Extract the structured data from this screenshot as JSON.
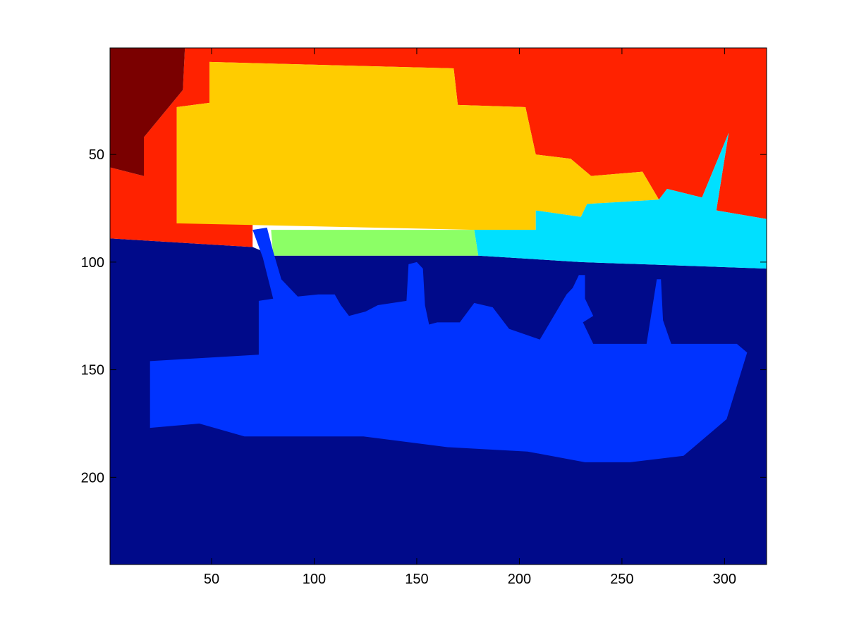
{
  "chart_data": {
    "type": "heatmap",
    "title": "",
    "xlabel": "",
    "ylabel": "",
    "xlim": [
      0.5,
      320.5
    ],
    "ylim": [
      240.5,
      0.5
    ],
    "y_reversed": true,
    "grid": false,
    "colormap": "jet",
    "x_ticks": [
      50,
      100,
      150,
      200,
      250,
      300
    ],
    "y_ticks": [
      50,
      100,
      150,
      200
    ],
    "regions": [
      {
        "label": "background-water",
        "color": "#000a8a",
        "points": [
          [
            0.5,
            89
          ],
          [
            70,
            93
          ],
          [
            80,
            97
          ],
          [
            180,
            97
          ],
          [
            230,
            100
          ],
          [
            320.5,
            103
          ],
          [
            320.5,
            240.5
          ],
          [
            0.5,
            240.5
          ]
        ]
      },
      {
        "label": "sky-red",
        "color": "#ff2200",
        "points": [
          [
            37,
            0.5
          ],
          [
            320.5,
            0.5
          ],
          [
            320.5,
            80
          ],
          [
            296,
            76
          ],
          [
            302,
            40
          ],
          [
            289,
            70
          ],
          [
            272,
            66
          ],
          [
            268,
            71
          ],
          [
            260,
            58
          ],
          [
            235,
            60
          ],
          [
            225,
            52
          ],
          [
            208,
            50
          ],
          [
            203,
            28
          ],
          [
            170,
            27
          ],
          [
            168,
            10
          ],
          [
            49,
            7
          ],
          [
            49,
            26
          ],
          [
            33,
            28
          ],
          [
            33,
            82
          ],
          [
            70,
            82
          ],
          [
            70,
            93
          ],
          [
            0.5,
            89
          ],
          [
            0.5,
            56
          ],
          [
            17,
            60
          ],
          [
            17,
            42
          ],
          [
            36,
            20
          ]
        ]
      },
      {
        "label": "corner-dark-red",
        "color": "#7a0000",
        "points": [
          [
            0.5,
            0.5
          ],
          [
            37,
            0.5
          ],
          [
            36,
            20
          ],
          [
            17,
            42
          ],
          [
            17,
            60
          ],
          [
            0.5,
            56
          ]
        ]
      },
      {
        "label": "yellow-region",
        "color": "#ffcc00",
        "points": [
          [
            49,
            7
          ],
          [
            168,
            10
          ],
          [
            170,
            27
          ],
          [
            203,
            28
          ],
          [
            208,
            50
          ],
          [
            225,
            52
          ],
          [
            235,
            60
          ],
          [
            260,
            58
          ],
          [
            268,
            71
          ],
          [
            233,
            73
          ],
          [
            230,
            79
          ],
          [
            208,
            76
          ],
          [
            208,
            85
          ],
          [
            178,
            85
          ],
          [
            33,
            82
          ],
          [
            33,
            28
          ],
          [
            49,
            26
          ]
        ]
      },
      {
        "label": "cyan-region",
        "color": "#00e0ff",
        "points": [
          [
            178,
            85
          ],
          [
            208,
            85
          ],
          [
            208,
            76
          ],
          [
            230,
            79
          ],
          [
            233,
            73
          ],
          [
            268,
            71
          ],
          [
            272,
            66
          ],
          [
            289,
            70
          ],
          [
            302,
            40
          ],
          [
            296,
            76
          ],
          [
            320.5,
            80
          ],
          [
            320.5,
            103
          ],
          [
            230,
            100
          ],
          [
            180,
            97
          ]
        ]
      },
      {
        "label": "green-region",
        "color": "#8cff66",
        "points": [
          [
            79,
            85
          ],
          [
            178,
            85
          ],
          [
            180,
            97
          ],
          [
            80,
            97
          ]
        ]
      },
      {
        "label": "boat-blue",
        "color": "#0033ff",
        "points": [
          [
            70,
            85
          ],
          [
            77,
            84
          ],
          [
            80,
            95
          ],
          [
            84,
            108
          ],
          [
            92,
            116
          ],
          [
            102,
            115
          ],
          [
            110,
            115
          ],
          [
            113,
            120
          ],
          [
            117,
            125
          ],
          [
            125,
            123
          ],
          [
            131,
            120
          ],
          [
            145,
            118
          ],
          [
            146,
            101
          ],
          [
            150,
            100
          ],
          [
            153,
            103
          ],
          [
            154,
            120
          ],
          [
            156,
            129
          ],
          [
            160,
            128
          ],
          [
            171,
            128
          ],
          [
            178,
            119
          ],
          [
            187,
            121
          ],
          [
            195,
            131
          ],
          [
            210,
            136
          ],
          [
            223,
            115
          ],
          [
            226,
            112
          ],
          [
            229,
            106
          ],
          [
            232,
            106
          ],
          [
            232,
            117
          ],
          [
            236,
            125
          ],
          [
            231,
            128
          ],
          [
            236,
            138
          ],
          [
            262,
            138
          ],
          [
            267,
            108
          ],
          [
            269,
            108
          ],
          [
            270,
            127
          ],
          [
            274,
            138
          ],
          [
            306,
            138
          ],
          [
            311,
            142
          ],
          [
            301,
            173
          ],
          [
            280,
            190
          ],
          [
            254,
            193
          ],
          [
            232,
            193
          ],
          [
            204,
            188
          ],
          [
            165,
            186
          ],
          [
            124,
            181
          ],
          [
            90,
            181
          ],
          [
            66,
            181
          ],
          [
            44,
            175
          ],
          [
            20,
            177
          ],
          [
            20,
            146
          ],
          [
            73,
            143
          ],
          [
            73,
            118
          ],
          [
            80,
            117
          ],
          [
            75,
            98
          ]
        ]
      }
    ]
  }
}
